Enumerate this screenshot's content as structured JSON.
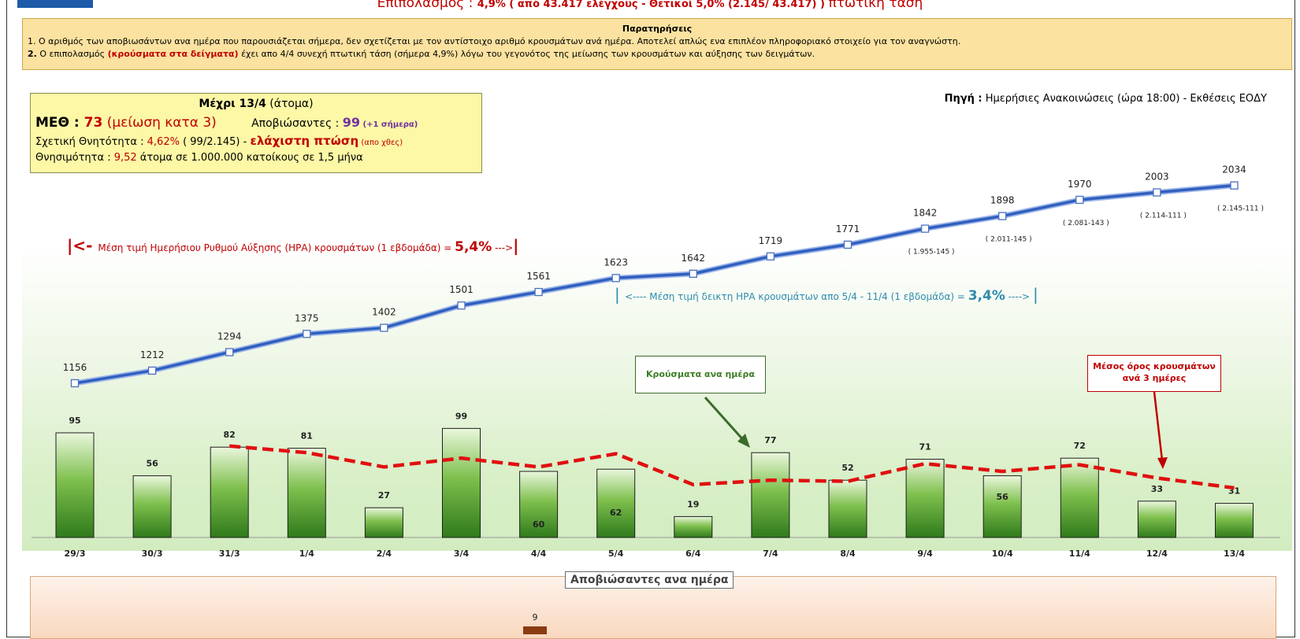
{
  "header": {
    "line_prefix": "Επιπολασμός : ",
    "line_value": "4,9%",
    "line_detail": " ( από 43.417 ελέγχους - Θετικοί 5,0% (2.145/ 43.417) ) ",
    "line_suffix": "πτωτική τάση"
  },
  "notes": {
    "title": "Παρατηρήσεις",
    "note1": "1.  Ο αριθμός των αποβιωσάντων ανα ημέρα που παρουσιάζεται σήμερα, δεν σχετίζεται με τον αντίστοιχο αριθμό κρουσμάτων ανά ημέρα. Αποτελεί απλώς ενα επιπλέον πληροφοριακό στοιχείο για τον αναγνώστη.",
    "note2_num": "2.",
    "note2_a": " Ο επιπολασμός ",
    "note2_red": " (κρούσματα στα δείγματα)",
    "note2_b": " έχει απο 4/4 συνεχή πτωτική τάση (σήμερα 4,9%) λόγω του γεγονότος της μείωσης των κρουσμάτων και αύξησης των δειγμάτων."
  },
  "stats": {
    "title_bold": "Μέχρι 13/4",
    "title_rest": " (άτομα)",
    "meth_label": "ΜΕΘ : ",
    "meth_value": "73",
    "meth_note": " (μείωση κατα 3)",
    "deaths_label": "Αποβιώσαντες : ",
    "deaths_value": "99",
    "deaths_note": " (+1 σήμερα)",
    "rel_label": "Σχετική Θνητότητα : ",
    "rel_value": "4,62%",
    "rel_calc": "  ( 99/2.145) - ",
    "rel_note": "ελάχιστη πτώση",
    "rel_note2": " (απο χθες)",
    "mort_label": "Θνησιμότητα : ",
    "mort_value": "9,52",
    "mort_rest": " άτομα σε 1.000.000 κατοίκους σε 1,5 μήνα"
  },
  "source": {
    "label": "Πηγή :",
    "text": " Ημερήσιες Ανακοινώσεις (ώρα 18:00) - Εκθέσεις ΕΟΔΥ"
  },
  "annotations": {
    "hra1_a": "|<- ",
    "hra1_b": "Μέση τιμή Ημερήσιου Ρυθμού Αύξησης (ΗΡΑ) κρουσμάτων (1 εβδομάδα) = ",
    "hra1_val": "5,4%",
    "hra1_c": " --->",
    "hra1_d": "|",
    "hra2_a": "| ",
    "hra2_b": "<---- Μέση τιμή δεικτη ΗΡΑ κρουσμάτων απο 5/4 - 11/4 (1 εβδομάδα) =  ",
    "hra2_val": "3,4%",
    "hra2_c": " ----> ",
    "hra2_d": "|",
    "callout_daily": "Κρούσματα ανα ημέρα",
    "callout_avg_1": "Μέσος όρος κρουσμάτων",
    "callout_avg_2": "ανά 3 ημέρες"
  },
  "deaths_panel": {
    "title": "Αποβιώσαντες ανα ημέρα",
    "visible_label": "9"
  },
  "chart_data": {
    "type": "bar",
    "categories": [
      "29/3",
      "30/3",
      "31/3",
      "1/4",
      "2/4",
      "3/4",
      "4/4",
      "5/4",
      "6/4",
      "7/4",
      "8/4",
      "9/4",
      "10/4",
      "11/4",
      "12/4",
      "13/4"
    ],
    "series": [
      {
        "values": [
          95,
          56,
          82,
          81,
          27,
          99,
          60,
          62,
          19,
          77,
          52,
          71,
          56,
          72,
          33,
          31
        ]
      },
      {
        "values": [
          null,
          null,
          83,
          77,
          64,
          72,
          64,
          76,
          48,
          52,
          51,
          67,
          60,
          66,
          54,
          45
        ]
      },
      {
        "values": [
          1156,
          1212,
          1294,
          1375,
          1402,
          1501,
          1561,
          1623,
          1642,
          1719,
          1771,
          1842,
          1898,
          1970,
          2003,
          2034
        ]
      }
    ],
    "cumulative_notes": [
      "",
      "",
      "",
      "",
      "",
      "",
      "",
      "",
      "",
      "",
      "",
      "( 1.955-145 )",
      "( 2.011-145 )",
      "( 2.081-143 )",
      "( 2.114-111 )",
      "( 2.145-111 )"
    ],
    "colors": {
      "bars": "#4e9a2e",
      "avg": "#e01010",
      "cumulative": "#2f5fbf"
    }
  }
}
